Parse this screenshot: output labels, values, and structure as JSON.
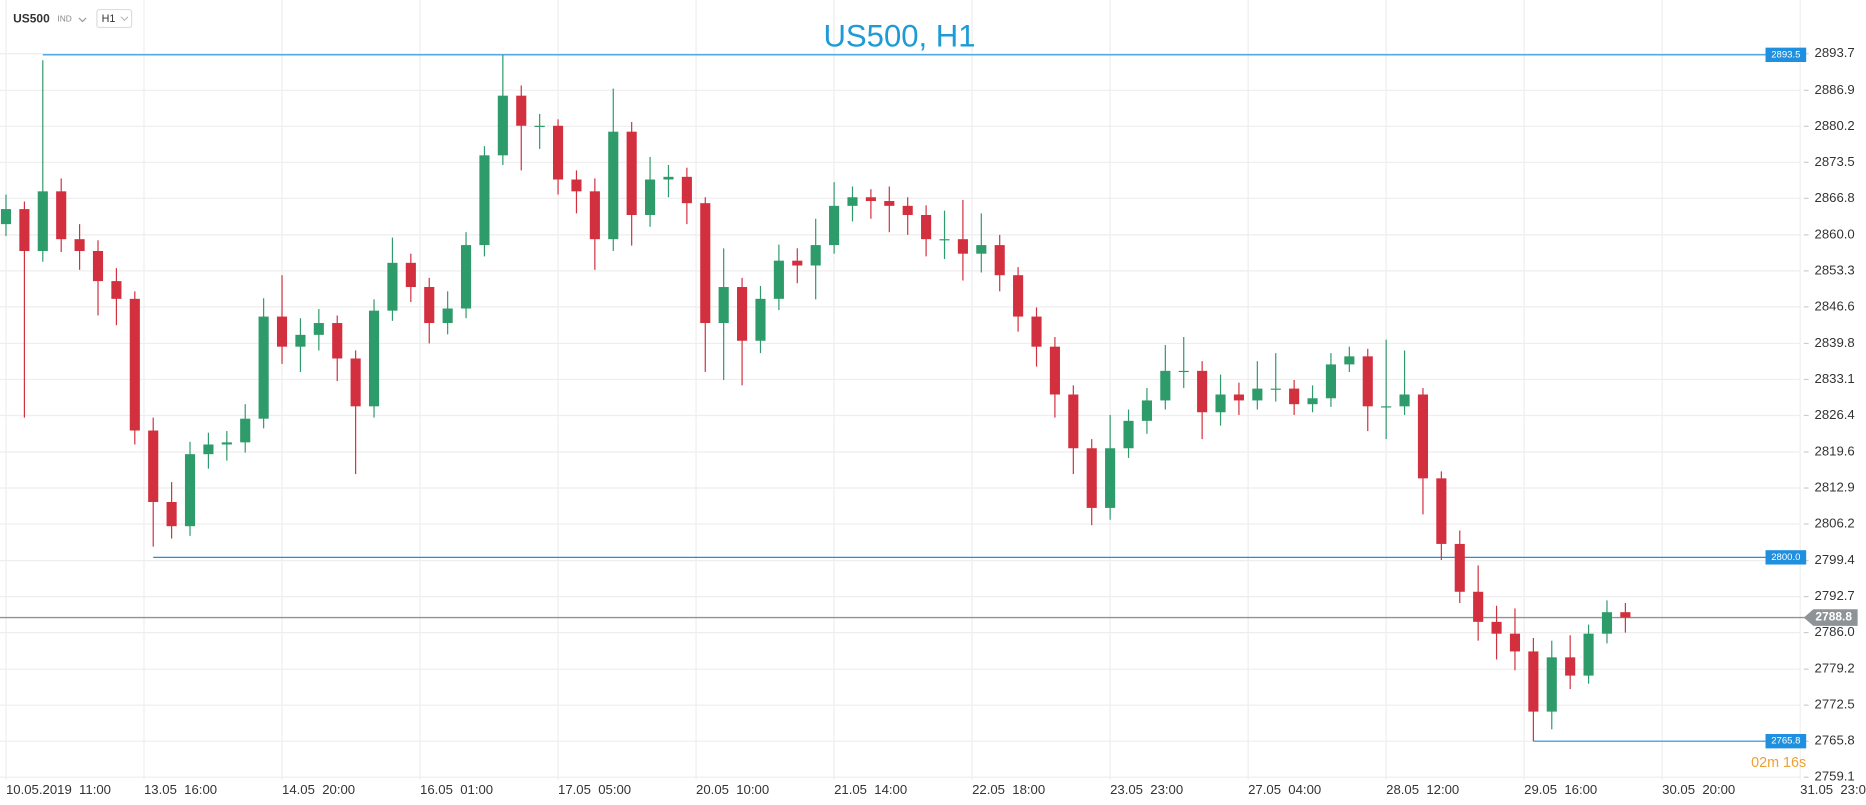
{
  "header": {
    "symbol": "US500",
    "market": "IND",
    "timeframe": "H1"
  },
  "chart_data": {
    "type": "candlestick",
    "title": "US500, H1",
    "up_color": "#2e9b6a",
    "down_color": "#d3303f",
    "grid": true,
    "open": [
      2862.0,
      2864.8,
      2857.0,
      2868.1,
      2859.2,
      2857.0,
      2851.4,
      2848.1,
      2823.6,
      2810.3,
      2805.8,
      2819.2,
      2821.0,
      2821.4,
      2825.8,
      2844.8,
      2839.2,
      2841.4,
      2843.6,
      2837.0,
      2828.1,
      2845.9,
      2854.8,
      2850.3,
      2843.6,
      2846.3,
      2858.1,
      2874.8,
      2885.9,
      2880.3,
      2880.3,
      2870.3,
      2868.1,
      2859.2,
      2879.2,
      2863.7,
      2870.3,
      2870.8,
      2865.9,
      2843.6,
      2850.3,
      2840.3,
      2848.1,
      2855.2,
      2854.3,
      2858.1,
      2865.4,
      2867.0,
      2866.3,
      2865.4,
      2863.7,
      2859.2,
      2859.2,
      2856.5,
      2858.1,
      2852.5,
      2844.8,
      2839.2,
      2830.3,
      2820.3,
      2809.2,
      2820.3,
      2825.4,
      2829.2,
      2834.7,
      2834.7,
      2827.0,
      2830.3,
      2829.2,
      2831.4,
      2831.4,
      2828.5,
      2829.6,
      2835.9,
      2837.4,
      2828.1,
      2828.1,
      2830.3,
      2814.7,
      2802.5,
      2793.6,
      2788.0,
      2785.8,
      2782.5,
      2771.3,
      2781.4,
      2778.0,
      2785.8,
      2789.8
    ],
    "high": [
      2867.5,
      2866.2,
      2892.5,
      2870.5,
      2862.0,
      2859.0,
      2853.8,
      2849.5,
      2826.0,
      2814.0,
      2821.5,
      2823.2,
      2823.5,
      2828.5,
      2848.2,
      2852.5,
      2844.5,
      2846.2,
      2845.0,
      2838.5,
      2848.0,
      2859.5,
      2856.5,
      2852.0,
      2849.5,
      2860.5,
      2876.5,
      2893.5,
      2887.8,
      2882.5,
      2881.5,
      2872.0,
      2870.5,
      2887.2,
      2881.0,
      2874.5,
      2873.0,
      2872.5,
      2867.0,
      2857.5,
      2852.0,
      2850.5,
      2858.2,
      2857.5,
      2863.0,
      2869.8,
      2869.0,
      2868.5,
      2869.0,
      2867.0,
      2865.5,
      2864.5,
      2866.5,
      2864.0,
      2860.0,
      2854.0,
      2846.5,
      2841.0,
      2832.0,
      2822.0,
      2826.5,
      2827.5,
      2831.5,
      2839.5,
      2841.0,
      2836.5,
      2834.0,
      2832.5,
      2836.5,
      2838.0,
      2833.0,
      2832.0,
      2838.0,
      2839.2,
      2838.8,
      2840.5,
      2838.5,
      2831.5,
      2816.0,
      2805.0,
      2798.5,
      2791.0,
      2790.5,
      2785.0,
      2784.5,
      2785.5,
      2787.5,
      2792.0,
      2791.5
    ],
    "low": [
      2859.8,
      2826.0,
      2855.0,
      2856.8,
      2853.5,
      2845.0,
      2843.2,
      2821.0,
      2802.0,
      2803.5,
      2804.0,
      2816.5,
      2818.0,
      2819.5,
      2824.0,
      2836.0,
      2834.5,
      2838.5,
      2832.8,
      2815.5,
      2826.0,
      2844.0,
      2847.5,
      2839.8,
      2841.5,
      2844.5,
      2856.0,
      2873.0,
      2872.0,
      2876.0,
      2867.5,
      2864.0,
      2853.5,
      2857.0,
      2858.0,
      2861.5,
      2867.0,
      2862.0,
      2834.5,
      2833.0,
      2832.0,
      2838.0,
      2846.0,
      2851.0,
      2848.0,
      2856.5,
      2862.5,
      2863.0,
      2860.5,
      2860.0,
      2856.0,
      2855.5,
      2851.5,
      2853.0,
      2849.5,
      2842.0,
      2835.5,
      2826.0,
      2815.5,
      2806.0,
      2807.0,
      2818.5,
      2823.0,
      2827.5,
      2831.5,
      2822.0,
      2824.5,
      2826.5,
      2827.5,
      2829.0,
      2826.5,
      2827.0,
      2828.0,
      2834.5,
      2823.5,
      2822.0,
      2826.5,
      2808.0,
      2799.5,
      2791.5,
      2784.5,
      2781.0,
      2779.0,
      2765.8,
      2768.0,
      2775.5,
      2776.5,
      2784.0,
      2786.0
    ],
    "close": [
      2864.8,
      2857.0,
      2868.1,
      2859.2,
      2857.0,
      2851.4,
      2848.1,
      2823.6,
      2810.3,
      2805.8,
      2819.2,
      2821.0,
      2821.4,
      2825.8,
      2844.8,
      2839.2,
      2841.4,
      2843.6,
      2837.0,
      2828.1,
      2845.9,
      2854.8,
      2850.3,
      2843.6,
      2846.3,
      2858.1,
      2874.8,
      2885.9,
      2880.3,
      2880.3,
      2870.3,
      2868.1,
      2859.2,
      2879.2,
      2863.7,
      2870.3,
      2870.8,
      2865.9,
      2843.6,
      2850.3,
      2840.3,
      2848.1,
      2855.2,
      2854.3,
      2858.1,
      2865.4,
      2867.0,
      2866.3,
      2865.4,
      2863.7,
      2859.2,
      2859.2,
      2856.5,
      2858.1,
      2852.5,
      2844.8,
      2839.2,
      2830.3,
      2820.3,
      2809.2,
      2820.3,
      2825.4,
      2829.2,
      2834.7,
      2834.7,
      2827.0,
      2830.3,
      2829.2,
      2831.4,
      2831.4,
      2828.5,
      2829.6,
      2835.9,
      2837.4,
      2828.1,
      2828.1,
      2830.3,
      2814.7,
      2802.5,
      2793.6,
      2788.0,
      2785.8,
      2782.5,
      2771.3,
      2781.4,
      2778.0,
      2785.8,
      2789.8,
      2788.8
    ],
    "xlim": [
      0,
      97.5
    ],
    "xticks": [
      {
        "value": 0,
        "label": "10.05.2019  11:00"
      },
      {
        "value": 7.5,
        "label": "13.05  16:00"
      },
      {
        "value": 15,
        "label": "14.05  20:00"
      },
      {
        "value": 22.5,
        "label": "16.05  01:00"
      },
      {
        "value": 30,
        "label": "17.05  05:00"
      },
      {
        "value": 37.5,
        "label": "20.05  10:00"
      },
      {
        "value": 45,
        "label": "21.05  14:00"
      },
      {
        "value": 52.5,
        "label": "22.05  18:00"
      },
      {
        "value": 60,
        "label": "23.05  23:00"
      },
      {
        "value": 67.5,
        "label": "27.05  04:00"
      },
      {
        "value": 75,
        "label": "28.05  12:00"
      },
      {
        "value": 82.5,
        "label": "29.05  16:00"
      },
      {
        "value": 90,
        "label": "30.05  20:00"
      },
      {
        "value": 97.5,
        "label": "31.05  23:00"
      }
    ],
    "ylim": [
      2758.6,
      2903.7
    ],
    "yticks": [
      2893.7,
      2886.9,
      2880.2,
      2873.5,
      2866.8,
      {
        "value": 2860,
        "label": "2860.0"
      },
      2853.3,
      2846.6,
      2839.8,
      2833.1,
      2826.4,
      2819.6,
      2812.9,
      2806.2,
      2799.4,
      2792.7,
      {
        "value": 2786,
        "label": "2786.0"
      },
      2779.2,
      2772.5,
      2765.8,
      2759.1
    ],
    "levels": [
      {
        "value": 2893.5,
        "label": "2893.5"
      },
      {
        "value": 2800,
        "label": "2800.0"
      },
      {
        "value": 2765.8,
        "label": "2765.8"
      }
    ],
    "level_color": "#1f8fe0",
    "current_price": {
      "value": 2788.8,
      "label": "2788.8"
    },
    "current_color": "#8d9396",
    "countdown": "02m 16s"
  }
}
